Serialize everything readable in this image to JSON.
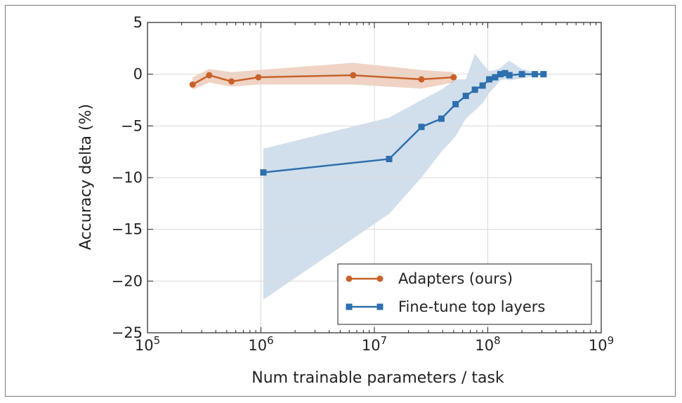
{
  "chart_data": {
    "type": "line",
    "title": "",
    "xlabel": "Num trainable parameters / task",
    "ylabel": "Accuracy delta (%)",
    "xscale": "log",
    "xlim": [
      100000,
      1000000000
    ],
    "ylim": [
      -25,
      5
    ],
    "xticks": [
      {
        "base": "10",
        "exp": "5",
        "value": 100000
      },
      {
        "base": "10",
        "exp": "6",
        "value": 1000000
      },
      {
        "base": "10",
        "exp": "7",
        "value": 10000000
      },
      {
        "base": "10",
        "exp": "8",
        "value": 100000000
      },
      {
        "base": "10",
        "exp": "9",
        "value": 1000000000
      }
    ],
    "yticks": [
      {
        "value": 5,
        "label": "5"
      },
      {
        "value": 0,
        "label": "0"
      },
      {
        "value": -5,
        "label": "−5"
      },
      {
        "value": -10,
        "label": "−10"
      },
      {
        "value": -15,
        "label": "−15"
      },
      {
        "value": -20,
        "label": "−20"
      },
      {
        "value": -25,
        "label": "−25"
      }
    ],
    "grid": true,
    "legend_position": "bottom-right",
    "series": [
      {
        "name": "Adapters (ours)",
        "color": "#c8622a",
        "marker": "circle",
        "x": [
          250000,
          350000,
          550000,
          950000,
          6500000,
          26000000,
          50000000
        ],
        "y": [
          -1.0,
          -0.1,
          -0.7,
          -0.3,
          -0.1,
          -0.5,
          -0.3
        ],
        "band_upper": [
          -0.3,
          0.5,
          0.2,
          0.4,
          1.1,
          0.4,
          0.2
        ],
        "band_lower": [
          -1.5,
          -0.8,
          -1.2,
          -1.0,
          -1.0,
          -1.4,
          -0.8
        ]
      },
      {
        "name": "Fine-tune top layers",
        "color": "#2e6fad",
        "marker": "square",
        "x": [
          1050000,
          13500000,
          26000000,
          39000000,
          52000000,
          64000000,
          77000000,
          90000000,
          103000000,
          116000000,
          129000000,
          142000000,
          155000000,
          200000000,
          260000000,
          310000000
        ],
        "y": [
          -9.5,
          -8.2,
          -5.1,
          -4.3,
          -2.9,
          -2.1,
          -1.5,
          -1.1,
          -0.5,
          -0.3,
          0.0,
          0.1,
          -0.1,
          0.0,
          0.0,
          0.0
        ],
        "band_upper": [
          -7.2,
          -4.2,
          -2.5,
          -1.5,
          -0.5,
          -0.5,
          2.0,
          1.0,
          0.3,
          0.4,
          0.6,
          1.0,
          1.3,
          0.5,
          0.2,
          0.1
        ],
        "band_lower": [
          -21.8,
          -13.5,
          -10.0,
          -7.5,
          -6.0,
          -4.3,
          -3.5,
          -2.8,
          -1.8,
          -1.2,
          -0.6,
          -0.5,
          -0.6,
          -0.4,
          -0.2,
          -0.1
        ]
      }
    ]
  }
}
